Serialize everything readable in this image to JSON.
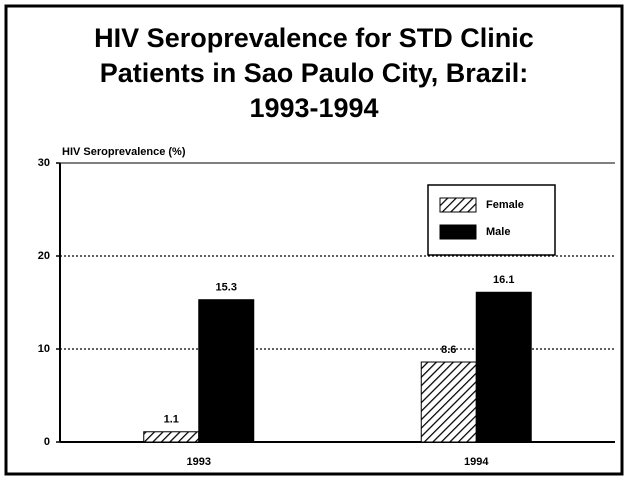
{
  "chart_data": {
    "type": "bar",
    "title": [
      "HIV Seroprevalence for STD Clinic",
      "Patients in Sao Paulo City, Brazil:",
      "1993-1994"
    ],
    "y_label": "HIV Seroprevalence (%)",
    "categories": [
      "1993",
      "1994"
    ],
    "series": [
      {
        "name": "Female",
        "color": "#000000",
        "hatch": true,
        "values": [
          1.1,
          8.6
        ]
      },
      {
        "name": "Male",
        "color": "#000000",
        "hatch": false,
        "values": [
          15.3,
          16.1
        ]
      }
    ],
    "ylim": [
      0,
      30
    ],
    "yticks": [
      0,
      10,
      20,
      30
    ],
    "grid": true,
    "legend": "top-right"
  }
}
